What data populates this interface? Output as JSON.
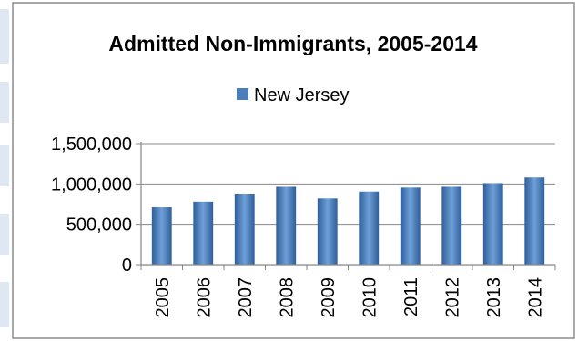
{
  "chart_data": {
    "type": "bar",
    "title": "Admitted Non-Immigrants, 2005-2014",
    "categories": [
      "2005",
      "2006",
      "2007",
      "2008",
      "2009",
      "2010",
      "2011",
      "2012",
      "2013",
      "2014"
    ],
    "series": [
      {
        "name": "New Jersey",
        "values": [
          710000,
          780000,
          880000,
          965000,
          820000,
          905000,
          955000,
          965000,
          1010000,
          1080000
        ]
      }
    ],
    "ylim": [
      0,
      1500000
    ],
    "y_ticks": [
      "0",
      "500,000",
      "1,000,000",
      "1,500,000"
    ],
    "y_tick_values": [
      0,
      500000,
      1000000,
      1500000
    ],
    "grid": true,
    "legend_position": "top",
    "colors": {
      "bar": "#4a7ebb",
      "bar_light": "#6f9fd8",
      "bar_dark": "#2f5f9a",
      "axis": "#878787",
      "frame": "#8c8c8c"
    }
  }
}
